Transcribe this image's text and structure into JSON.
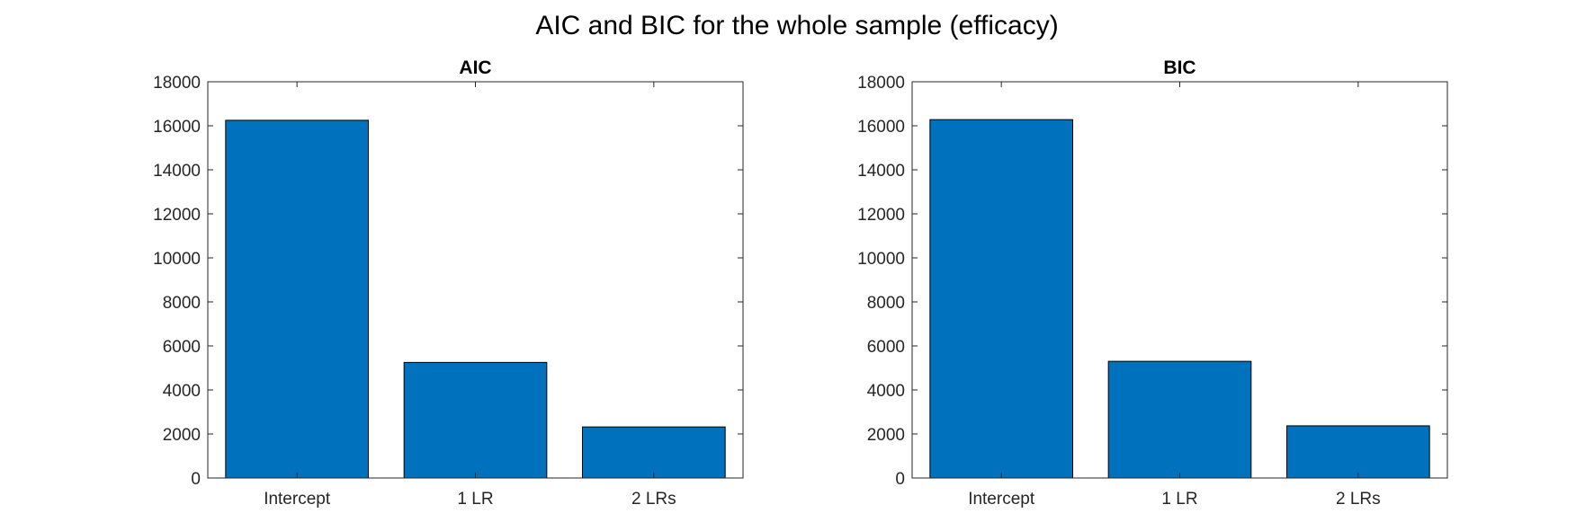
{
  "figure": {
    "title": "AIC and BIC for the whole sample (efficacy)"
  },
  "chart_data": [
    {
      "type": "bar",
      "title": "AIC",
      "categories": [
        "Intercept",
        "1 LR",
        "2 LRs"
      ],
      "values": [
        16250,
        5250,
        2320
      ],
      "xlabel": "",
      "ylabel": "",
      "ylim": [
        0,
        18000
      ],
      "yticks": [
        0,
        2000,
        4000,
        6000,
        8000,
        10000,
        12000,
        14000,
        16000,
        18000
      ],
      "grid": false,
      "bar_color": "#0072BD"
    },
    {
      "type": "bar",
      "title": "BIC",
      "categories": [
        "Intercept",
        "1 LR",
        "2 LRs"
      ],
      "values": [
        16280,
        5300,
        2370
      ],
      "xlabel": "",
      "ylabel": "",
      "ylim": [
        0,
        18000
      ],
      "yticks": [
        0,
        2000,
        4000,
        6000,
        8000,
        10000,
        12000,
        14000,
        16000,
        18000
      ],
      "grid": false,
      "bar_color": "#0072BD"
    }
  ]
}
